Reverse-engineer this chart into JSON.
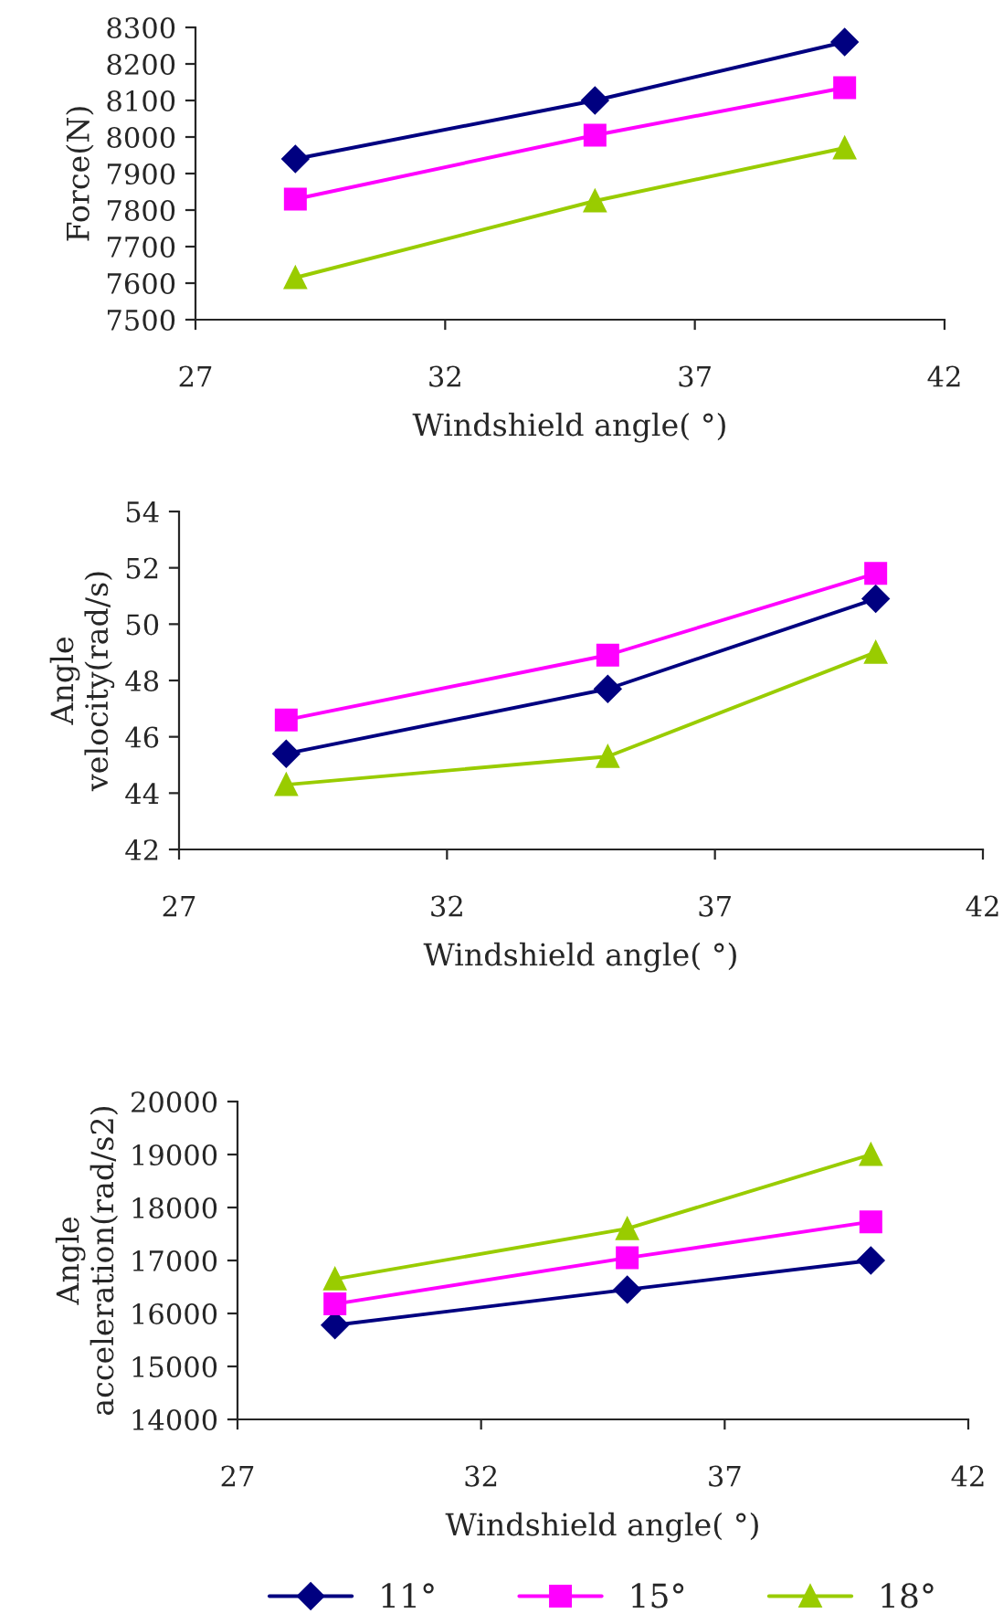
{
  "chart_data": [
    {
      "type": "line",
      "xlabel": "Windshield angle( °)",
      "ylabel": "Force(N)",
      "x": [
        29,
        35,
        40
      ],
      "xlim": [
        27,
        42
      ],
      "xticks": [
        27,
        32,
        37,
        42
      ],
      "ylim": [
        7500,
        8300
      ],
      "yticks": [
        7500,
        7600,
        7700,
        7800,
        7900,
        8000,
        8100,
        8200,
        8300
      ],
      "grid": false,
      "series": [
        {
          "color": "#000080",
          "marker": "diamond",
          "values": [
            7940,
            8100,
            8260
          ]
        },
        {
          "color": "#ff00ff",
          "marker": "square",
          "values": [
            7830,
            8005,
            8135
          ]
        },
        {
          "color": "#99cc00",
          "marker": "triangle",
          "values": [
            7615,
            7825,
            7970
          ]
        }
      ]
    },
    {
      "type": "line",
      "xlabel": "Windshield angle( °)",
      "ylabel": "Angle\nvelocity(rad/s)",
      "x": [
        29,
        35,
        40
      ],
      "xlim": [
        27,
        42
      ],
      "xticks": [
        27,
        32,
        37,
        42
      ],
      "ylim": [
        42,
        54
      ],
      "yticks": [
        42,
        44,
        46,
        48,
        50,
        52,
        54
      ],
      "grid": false,
      "series": [
        {
          "color": "#000080",
          "marker": "diamond",
          "values": [
            45.4,
            47.7,
            50.9
          ]
        },
        {
          "color": "#ff00ff",
          "marker": "square",
          "values": [
            46.6,
            48.9,
            51.8
          ]
        },
        {
          "color": "#99cc00",
          "marker": "triangle",
          "values": [
            44.3,
            45.3,
            49.0
          ]
        }
      ]
    },
    {
      "type": "line",
      "xlabel": "Windshield angle( °)",
      "ylabel": "Angle\nacceleration(rad/s2)",
      "x": [
        29,
        35,
        40
      ],
      "xlim": [
        27,
        42
      ],
      "xticks": [
        27,
        32,
        37,
        42
      ],
      "ylim": [
        14000,
        20000
      ],
      "yticks": [
        14000,
        15000,
        16000,
        17000,
        18000,
        19000,
        20000
      ],
      "grid": false,
      "legend": "bottom",
      "series": [
        {
          "name": "11°",
          "color": "#000080",
          "marker": "diamond",
          "values": [
            15780,
            16450,
            17000
          ]
        },
        {
          "name": "15°",
          "color": "#ff00ff",
          "marker": "square",
          "values": [
            16180,
            17050,
            17730
          ]
        },
        {
          "name": "18°",
          "color": "#99cc00",
          "marker": "triangle",
          "values": [
            16650,
            17600,
            19000
          ]
        }
      ]
    }
  ]
}
